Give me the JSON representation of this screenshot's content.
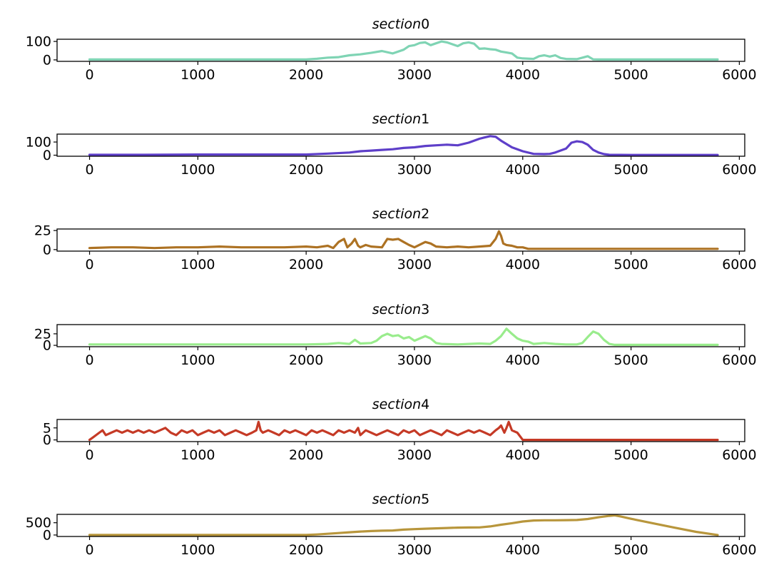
{
  "chart_data": [
    {
      "type": "line",
      "title": "section0",
      "color": "#7fd4b4",
      "xlim": [
        -300,
        6050
      ],
      "ylim": [
        -8,
        112
      ],
      "xticks": [
        0,
        1000,
        2000,
        3000,
        4000,
        5000,
        6000
      ],
      "yticks": [
        0,
        100
      ],
      "series": [
        {
          "x": [
            0,
            500,
            1000,
            1500,
            2000,
            2100,
            2200,
            2300,
            2400,
            2500,
            2600,
            2700,
            2800,
            2900,
            2950,
            3000,
            3050,
            3100,
            3150,
            3200,
            3250,
            3300,
            3350,
            3400,
            3450,
            3500,
            3550,
            3600,
            3650,
            3700,
            3750,
            3800,
            3850,
            3900,
            3950,
            4000,
            4100,
            4150,
            4200,
            4250,
            4300,
            4350,
            4400,
            4500,
            4600,
            4650,
            4700,
            5000,
            5500,
            5800
          ],
          "y": [
            2,
            2,
            2,
            2,
            2,
            6,
            12,
            15,
            25,
            30,
            38,
            48,
            35,
            55,
            75,
            80,
            92,
            95,
            80,
            90,
            100,
            95,
            85,
            75,
            90,
            95,
            88,
            60,
            62,
            58,
            55,
            45,
            40,
            35,
            12,
            8,
            5,
            20,
            25,
            18,
            25,
            10,
            5,
            4,
            20,
            3,
            2,
            2,
            2,
            2
          ]
        }
      ]
    },
    {
      "type": "line",
      "title": "section1",
      "color": "#5e3fc9",
      "xlim": [
        -300,
        6050
      ],
      "ylim": [
        -8,
        160
      ],
      "xticks": [
        0,
        1000,
        2000,
        3000,
        4000,
        5000,
        6000
      ],
      "yticks": [
        0,
        100
      ],
      "series": [
        {
          "x": [
            0,
            500,
            1000,
            1500,
            2000,
            2200,
            2400,
            2500,
            2600,
            2700,
            2800,
            2900,
            3000,
            3100,
            3200,
            3300,
            3400,
            3500,
            3550,
            3600,
            3650,
            3700,
            3750,
            3800,
            3900,
            4000,
            4100,
            4200,
            4250,
            4300,
            4400,
            4450,
            4500,
            4550,
            4600,
            4650,
            4700,
            4750,
            4800,
            5000,
            5500,
            5800
          ],
          "y": [
            3,
            3,
            5,
            5,
            5,
            12,
            20,
            30,
            35,
            40,
            45,
            55,
            60,
            70,
            75,
            80,
            75,
            95,
            110,
            125,
            135,
            145,
            140,
            110,
            60,
            30,
            10,
            8,
            10,
            20,
            50,
            95,
            105,
            100,
            80,
            40,
            20,
            8,
            3,
            2,
            2,
            2
          ]
        }
      ]
    },
    {
      "type": "line",
      "title": "section2",
      "color": "#ad7223",
      "xlim": [
        -300,
        6050
      ],
      "ylim": [
        -2,
        27
      ],
      "xticks": [
        0,
        1000,
        2000,
        3000,
        4000,
        5000,
        6000
      ],
      "yticks": [
        0,
        25
      ],
      "series": [
        {
          "x": [
            0,
            200,
            400,
            600,
            800,
            1000,
            1200,
            1400,
            1600,
            1800,
            2000,
            2100,
            2200,
            2250,
            2300,
            2350,
            2380,
            2420,
            2450,
            2480,
            2500,
            2550,
            2600,
            2700,
            2750,
            2800,
            2850,
            2900,
            2950,
            3000,
            3100,
            3150,
            3200,
            3300,
            3400,
            3500,
            3600,
            3700,
            3750,
            3780,
            3800,
            3820,
            3850,
            3900,
            3950,
            4000,
            4050,
            4500,
            5000,
            5500,
            5800
          ],
          "y": [
            2,
            3,
            3,
            2,
            3,
            3,
            4,
            3,
            3,
            3,
            4,
            3,
            5,
            2,
            10,
            14,
            3,
            8,
            14,
            5,
            3,
            6,
            4,
            3,
            14,
            13,
            14,
            10,
            6,
            3,
            10,
            8,
            4,
            3,
            4,
            3,
            4,
            5,
            14,
            24,
            18,
            8,
            6,
            5,
            3,
            3,
            1,
            1,
            1,
            1,
            1
          ]
        }
      ]
    },
    {
      "type": "line",
      "title": "section3",
      "color": "#99ec8c",
      "xlim": [
        -300,
        6050
      ],
      "ylim": [
        -3,
        45
      ],
      "xticks": [
        0,
        1000,
        2000,
        3000,
        4000,
        5000,
        6000
      ],
      "yticks": [
        0,
        25
      ],
      "series": [
        {
          "x": [
            0,
            500,
            1000,
            1500,
            2000,
            2200,
            2300,
            2400,
            2450,
            2500,
            2600,
            2650,
            2700,
            2750,
            2800,
            2850,
            2900,
            2950,
            3000,
            3050,
            3100,
            3150,
            3200,
            3250,
            3400,
            3500,
            3600,
            3700,
            3750,
            3800,
            3850,
            3900,
            3950,
            4000,
            4050,
            4100,
            4200,
            4300,
            4400,
            4500,
            4550,
            4600,
            4650,
            4700,
            4750,
            4800,
            4850,
            5000,
            5500,
            5800
          ],
          "y": [
            2,
            2,
            2,
            2,
            2,
            3,
            5,
            3,
            12,
            4,
            5,
            10,
            20,
            25,
            20,
            22,
            15,
            18,
            10,
            15,
            20,
            15,
            5,
            3,
            2,
            3,
            4,
            3,
            10,
            20,
            36,
            25,
            15,
            10,
            8,
            3,
            5,
            3,
            2,
            2,
            5,
            18,
            30,
            25,
            12,
            3,
            1,
            1,
            1,
            1
          ]
        }
      ]
    },
    {
      "type": "line",
      "title": "section4",
      "color": "#c53a26",
      "xlim": [
        -300,
        6050
      ],
      "ylim": [
        -0.7,
        8.5
      ],
      "xticks": [
        0,
        1000,
        2000,
        3000,
        4000,
        5000,
        6000
      ],
      "yticks": [
        0,
        5
      ],
      "series": [
        {
          "x": [
            0,
            30,
            60,
            90,
            120,
            150,
            200,
            250,
            300,
            350,
            400,
            450,
            500,
            550,
            600,
            650,
            700,
            750,
            800,
            850,
            900,
            950,
            1000,
            1050,
            1100,
            1150,
            1200,
            1250,
            1300,
            1350,
            1400,
            1450,
            1500,
            1540,
            1560,
            1580,
            1600,
            1650,
            1700,
            1750,
            1800,
            1850,
            1900,
            1950,
            2000,
            2050,
            2100,
            2150,
            2200,
            2250,
            2300,
            2350,
            2400,
            2450,
            2480,
            2500,
            2550,
            2600,
            2650,
            2700,
            2750,
            2800,
            2850,
            2900,
            2950,
            3000,
            3050,
            3100,
            3150,
            3200,
            3250,
            3300,
            3350,
            3400,
            3450,
            3500,
            3550,
            3600,
            3650,
            3700,
            3750,
            3780,
            3800,
            3830,
            3850,
            3870,
            3900,
            3950,
            4000,
            4500,
            5000,
            5500,
            5800
          ],
          "y": [
            0,
            1,
            2,
            3,
            4,
            2,
            3,
            4,
            3,
            4,
            3,
            4,
            3,
            4,
            3,
            4,
            5,
            3,
            2,
            4,
            3,
            4,
            2,
            3,
            4,
            3,
            4,
            2,
            3,
            4,
            3,
            2,
            3,
            4,
            7.5,
            4,
            3,
            4,
            3,
            2,
            4,
            3,
            4,
            3,
            2,
            4,
            3,
            4,
            3,
            2,
            4,
            3,
            4,
            3,
            5,
            2,
            4,
            3,
            2,
            3,
            4,
            3,
            2,
            4,
            3,
            4,
            2,
            3,
            4,
            3,
            2,
            4,
            3,
            2,
            3,
            4,
            3,
            4,
            3,
            2,
            4,
            5,
            6,
            3,
            5,
            7.5,
            4,
            3,
            0,
            0,
            0,
            0,
            0
          ]
        }
      ]
    },
    {
      "type": "line",
      "title": "section5",
      "color": "#b8963c",
      "xlim": [
        -300,
        6050
      ],
      "ylim": [
        -60,
        840
      ],
      "xticks": [
        0,
        1000,
        2000,
        3000,
        4000,
        5000,
        6000
      ],
      "yticks": [
        0,
        500
      ],
      "series": [
        {
          "x": [
            0,
            500,
            1000,
            1500,
            2000,
            2100,
            2200,
            2300,
            2400,
            2500,
            2600,
            2700,
            2800,
            2900,
            3000,
            3100,
            3200,
            3300,
            3400,
            3500,
            3600,
            3700,
            3800,
            3900,
            4000,
            4100,
            4200,
            4300,
            4400,
            4500,
            4600,
            4700,
            4800,
            4850,
            4900,
            5000,
            5200,
            5400,
            5600,
            5800
          ],
          "y": [
            0,
            0,
            0,
            0,
            0,
            20,
            50,
            80,
            110,
            140,
            160,
            175,
            185,
            220,
            240,
            255,
            270,
            285,
            300,
            305,
            310,
            350,
            420,
            480,
            550,
            590,
            600,
            600,
            605,
            610,
            650,
            720,
            780,
            800,
            760,
            660,
            480,
            300,
            130,
            0
          ]
        }
      ]
    }
  ]
}
